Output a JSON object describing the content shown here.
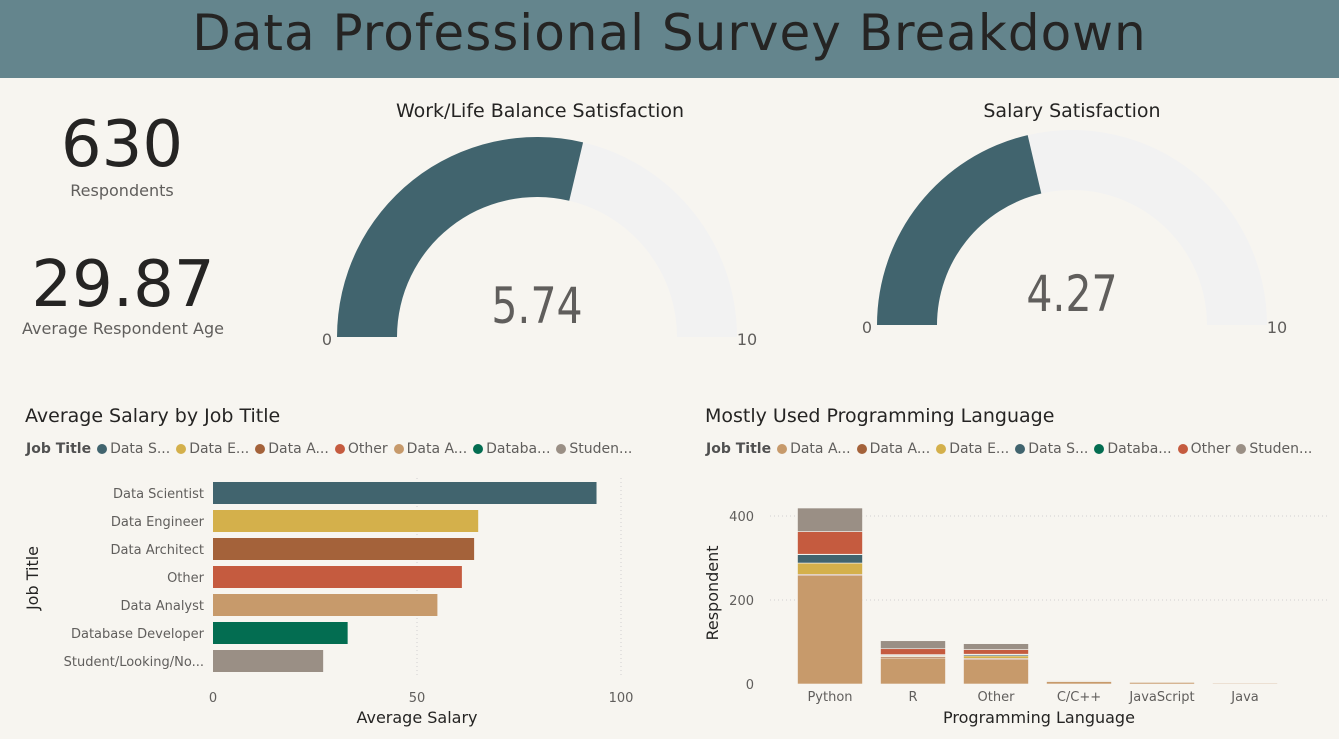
{
  "title": "Data Professional Survey Breakdown",
  "kpis": {
    "respondents_value": "630",
    "respondents_label": "Respondents",
    "age_value": "29.87",
    "age_label": "Average Respondent Age"
  },
  "colors": {
    "header": "#64858d",
    "gauge_fill": "#41646e",
    "gauge_track": "#f2f2f2"
  },
  "chart_data": [
    {
      "type": "gauge",
      "title": "Work/Life Balance Satisfaction",
      "value": 5.74,
      "value_label": "5.74",
      "min": 0,
      "max": 10,
      "min_label": "0",
      "max_label": "10"
    },
    {
      "type": "gauge",
      "title": "Salary Satisfaction",
      "value": 4.27,
      "value_label": "4.27",
      "min": 0,
      "max": 10,
      "min_label": "0",
      "max_label": "10"
    },
    {
      "type": "bar",
      "orientation": "horizontal",
      "title": "Average Salary by Job Title",
      "legend_title": "Job Title",
      "legend": [
        {
          "label": "Data S...",
          "color": "#41646e"
        },
        {
          "label": "Data E...",
          "color": "#d4b04b"
        },
        {
          "label": "Data A...",
          "color": "#a4623a"
        },
        {
          "label": "Other",
          "color": "#c55b3f"
        },
        {
          "label": "Data A...",
          "color": "#c79a6b"
        },
        {
          "label": "Databa...",
          "color": "#036d51"
        },
        {
          "label": "Studen...",
          "color": "#9a8f85"
        }
      ],
      "categories": [
        "Data Scientist",
        "Data Engineer",
        "Data Architect",
        "Other",
        "Data Analyst",
        "Database Developer",
        "Student/Looking/No..."
      ],
      "values": [
        94,
        65,
        64,
        61,
        55,
        33,
        27
      ],
      "colors": [
        "#41646e",
        "#d4b04b",
        "#a4623a",
        "#c55b3f",
        "#c79a6b",
        "#036d51",
        "#9a8f85"
      ],
      "xlabel": "Average Salary",
      "ylabel": "Job Title",
      "xlim": [
        0,
        100
      ],
      "xticks": [
        "0",
        "50",
        "100"
      ]
    },
    {
      "type": "bar",
      "stacked": true,
      "title": "Mostly Used Programming Language",
      "legend_title": "Job Title",
      "legend": [
        {
          "label": "Data A...",
          "color": "#c79a6b"
        },
        {
          "label": "Data A...",
          "color": "#a4623a"
        },
        {
          "label": "Data E...",
          "color": "#d4b04b"
        },
        {
          "label": "Data S...",
          "color": "#41646e"
        },
        {
          "label": "Databa...",
          "color": "#036d51"
        },
        {
          "label": "Other",
          "color": "#c55b3f"
        },
        {
          "label": "Studen...",
          "color": "#9a8f85"
        }
      ],
      "categories": [
        "Python",
        "R",
        "Other",
        "C/C++",
        "JavaScript",
        "Java"
      ],
      "series": [
        {
          "color": "#c79a6b",
          "values": [
            258,
            62,
            58,
            6,
            4,
            2
          ]
        },
        {
          "color": "#a4623a",
          "values": [
            3,
            3,
            3,
            1,
            1,
            0
          ]
        },
        {
          "color": "#d4b04b",
          "values": [
            27,
            2,
            6,
            0,
            0,
            0
          ]
        },
        {
          "color": "#41646e",
          "values": [
            20,
            2,
            3,
            1,
            0,
            0
          ]
        },
        {
          "color": "#036d51",
          "values": [
            1,
            1,
            1,
            0,
            0,
            0
          ]
        },
        {
          "color": "#c55b3f",
          "values": [
            54,
            14,
            11,
            1,
            1,
            1
          ]
        },
        {
          "color": "#9a8f85",
          "values": [
            56,
            19,
            14,
            1,
            1,
            0
          ]
        }
      ],
      "xlabel": "Programming Language",
      "ylabel": "Respondent",
      "ylim": [
        0,
        430
      ],
      "yticks": [
        "0",
        "200",
        "400"
      ]
    }
  ]
}
